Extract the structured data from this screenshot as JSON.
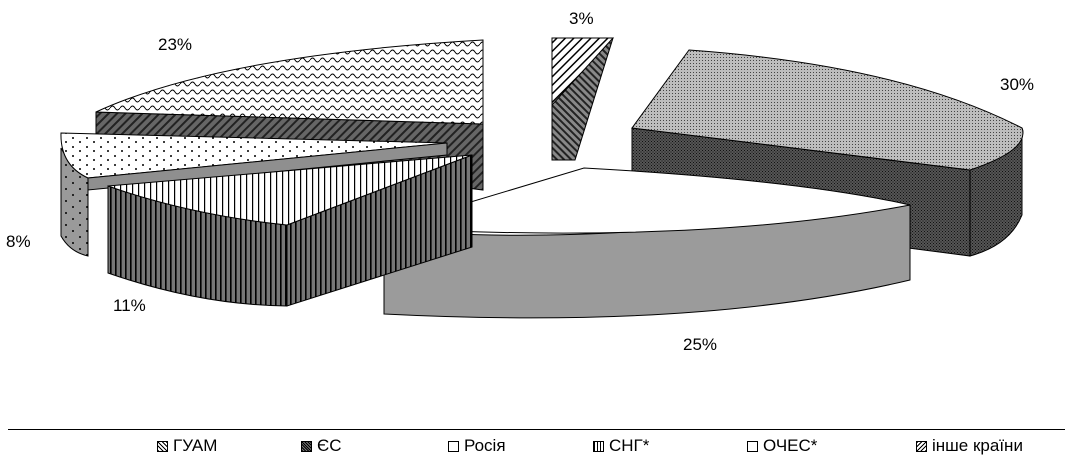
{
  "chart_data": {
    "type": "pie",
    "title": "",
    "slices": [
      {
        "label": "ГУАМ",
        "value": 3,
        "display": "3%"
      },
      {
        "label": "ЄС",
        "value": 30,
        "display": "30%"
      },
      {
        "label": "Росія",
        "value": 25,
        "display": "25%"
      },
      {
        "label": "СНГ*",
        "value": 11,
        "display": "11%"
      },
      {
        "label": "ОЧЕС*",
        "value": 8,
        "display": "8%"
      },
      {
        "label": "інше країни",
        "value": 23,
        "display": "23%"
      }
    ],
    "legend_position": "bottom",
    "style": "3d-exploded-pie"
  },
  "legend": {
    "items": [
      {
        "label": "ГУАМ",
        "swatch": "diagonal-hatch"
      },
      {
        "label": "ЄС",
        "swatch": "dense-grid"
      },
      {
        "label": "Росія",
        "swatch": "white"
      },
      {
        "label": "СНГ*",
        "swatch": "vertical-stripes"
      },
      {
        "label": "ОЧЕС*",
        "swatch": "white"
      },
      {
        "label": "інше країни",
        "swatch": "wavy-hatch"
      }
    ]
  }
}
